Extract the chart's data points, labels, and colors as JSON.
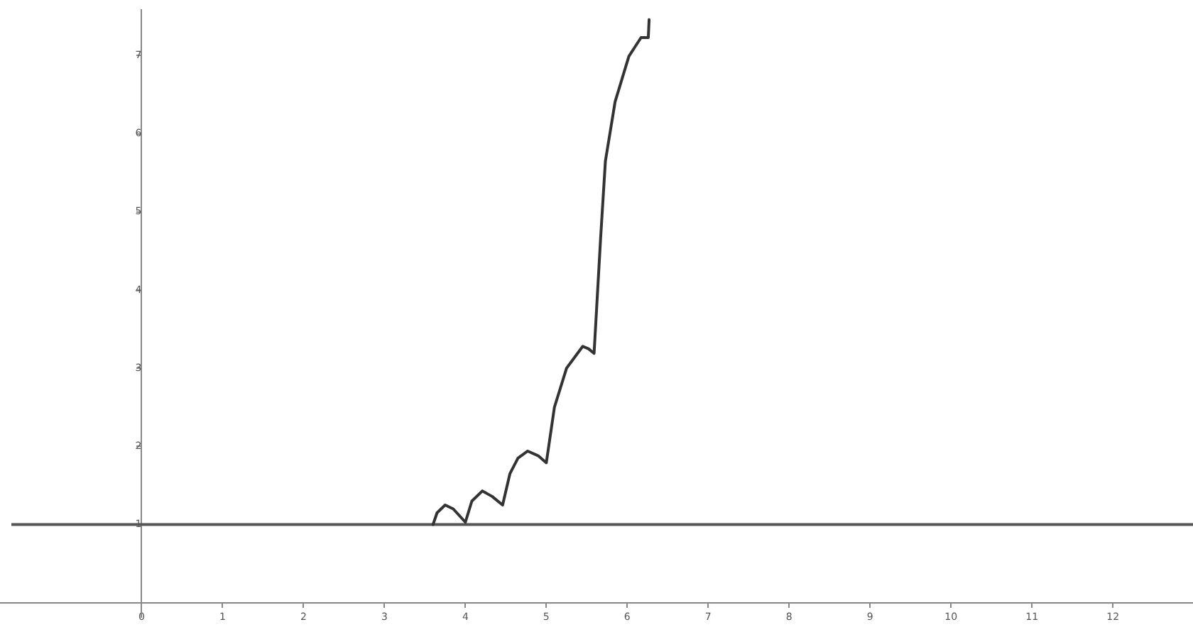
{
  "chart_data": {
    "type": "line",
    "x": [
      3.6,
      3.65,
      3.75,
      3.85,
      4.0,
      4.08,
      4.21,
      4.33,
      4.46,
      4.55,
      4.65,
      4.77,
      4.9,
      5.0,
      5.1,
      5.25,
      5.45,
      5.52,
      5.59,
      5.67,
      5.73,
      5.85,
      6.02,
      6.17,
      6.26,
      6.27
    ],
    "series": [
      {
        "color": "#333333",
        "values": [
          1,
          1.15,
          1.25,
          1.2,
          1.03,
          1.3,
          1.43,
          1.36,
          1.25,
          1.65,
          1.85,
          1.94,
          1.88,
          1.79,
          2.5,
          3.0,
          3.28,
          3.25,
          3.19,
          4.65,
          5.65,
          6.41,
          6.99,
          7.23,
          7.23,
          7.46
        ]
      }
    ],
    "xlim": [
      -1.75,
      12.99
    ],
    "ylim": [
      -0.18,
      7.58
    ],
    "xticks": [
      0,
      1,
      2,
      3,
      4,
      5,
      6,
      7,
      8,
      9,
      10,
      11,
      12
    ],
    "yticks": [
      1,
      2,
      3,
      4,
      5,
      6,
      7
    ],
    "ref_lines": [
      {
        "axis": "y",
        "value": 1,
        "color": "#555555"
      }
    ],
    "legend": false,
    "grid": false,
    "marker": "none"
  }
}
